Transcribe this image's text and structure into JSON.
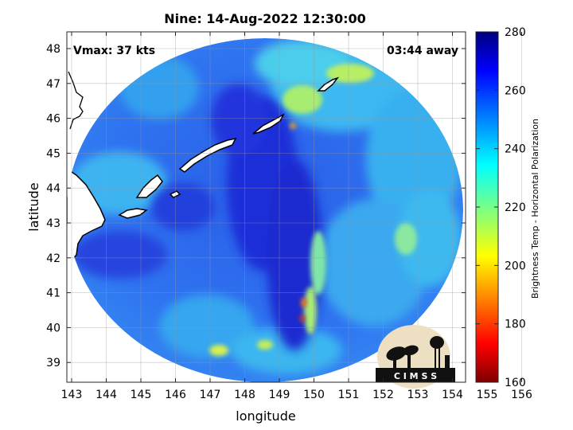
{
  "figure": {
    "title": "Nine: 14-Aug-2022 12:30:00",
    "vmax_text": "Vmax: 37 kts",
    "time_away_text": "03:44 away",
    "xlabel": "longitude",
    "ylabel": "latitude",
    "xticks": [
      "143",
      "144",
      "145",
      "146",
      "147",
      "148",
      "149",
      "150",
      "151",
      "152",
      "153",
      "154",
      "155",
      "156"
    ],
    "yticks": [
      "48",
      "47",
      "46",
      "45",
      "44",
      "43",
      "42",
      "41",
      "40",
      "39"
    ],
    "logo_text": "C I M S S"
  },
  "colorbar": {
    "label": "Brightness Temp - Horizontal Polarization",
    "ticks": [
      "280",
      "260",
      "240",
      "220",
      "200",
      "180",
      "160"
    ],
    "range": [
      160,
      280
    ],
    "colormap": "jet"
  },
  "colors": {
    "deep_blue": "#1a2fd6",
    "mid_blue": "#2f6ef0",
    "cyan": "#3fd4ee",
    "yellow_green": "#c8f05a",
    "orange": "#f08020",
    "red": "#cc1010",
    "coastline": "#ffffff"
  }
}
